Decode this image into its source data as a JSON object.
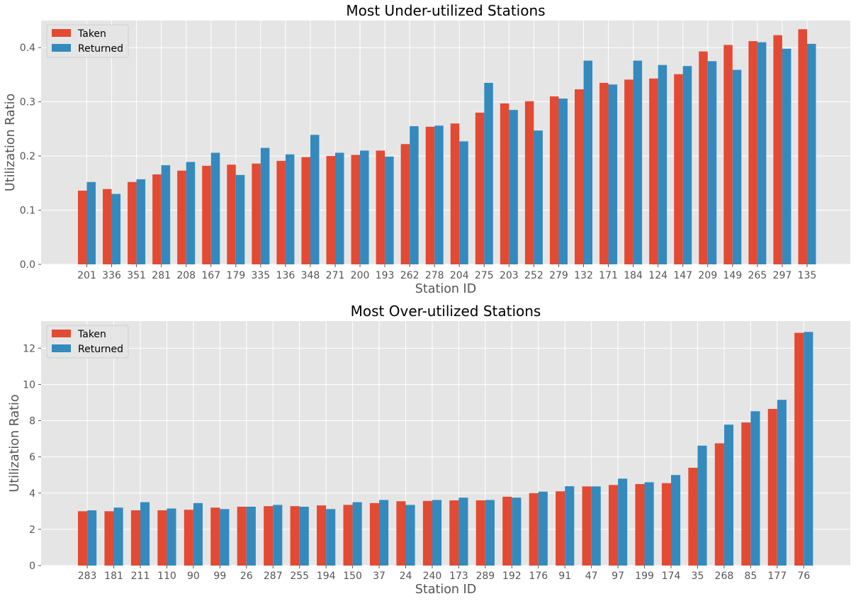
{
  "chart_data": [
    {
      "type": "bar",
      "title": "Most Under-utilized Stations",
      "xlabel": "Station ID",
      "ylabel": "Utilization Ratio",
      "ylim": [
        0,
        0.45
      ],
      "yticks": [
        0.0,
        0.1,
        0.2,
        0.3,
        0.4
      ],
      "ytick_labels": [
        "0.0",
        "0.1",
        "0.2",
        "0.3",
        "0.4"
      ],
      "grid": true,
      "legend": "top-left",
      "categories": [
        "201",
        "336",
        "351",
        "281",
        "208",
        "167",
        "179",
        "335",
        "136",
        "348",
        "271",
        "200",
        "193",
        "262",
        "278",
        "204",
        "275",
        "203",
        "252",
        "279",
        "132",
        "171",
        "184",
        "124",
        "147",
        "209",
        "149",
        "265",
        "297",
        "135"
      ],
      "series": [
        {
          "name": "Taken",
          "color": "#e24a33",
          "values": [
            0.136,
            0.139,
            0.152,
            0.166,
            0.173,
            0.182,
            0.184,
            0.186,
            0.191,
            0.198,
            0.2,
            0.202,
            0.21,
            0.222,
            0.254,
            0.26,
            0.28,
            0.297,
            0.301,
            0.31,
            0.323,
            0.335,
            0.341,
            0.343,
            0.351,
            0.393,
            0.405,
            0.412,
            0.423,
            0.434
          ]
        },
        {
          "name": "Returned",
          "color": "#348abd",
          "values": [
            0.152,
            0.13,
            0.157,
            0.183,
            0.189,
            0.206,
            0.165,
            0.215,
            0.203,
            0.239,
            0.206,
            0.21,
            0.199,
            0.255,
            0.256,
            0.227,
            0.335,
            0.285,
            0.247,
            0.306,
            0.376,
            0.332,
            0.376,
            0.368,
            0.366,
            0.375,
            0.359,
            0.41,
            0.398,
            0.407
          ]
        }
      ]
    },
    {
      "type": "bar",
      "title": "Most Over-utilized Stations",
      "xlabel": "Station ID",
      "ylabel": "Utilization Ratio",
      "ylim": [
        0,
        13.5
      ],
      "yticks": [
        0,
        2,
        4,
        6,
        8,
        10,
        12
      ],
      "ytick_labels": [
        "0",
        "2",
        "4",
        "6",
        "8",
        "10",
        "12"
      ],
      "grid": true,
      "legend": "top-left",
      "categories": [
        "283",
        "181",
        "211",
        "110",
        "90",
        "99",
        "26",
        "287",
        "255",
        "194",
        "150",
        "37",
        "24",
        "240",
        "173",
        "289",
        "192",
        "176",
        "91",
        "47",
        "97",
        "199",
        "174",
        "35",
        "268",
        "85",
        "177",
        "76"
      ],
      "series": [
        {
          "name": "Taken",
          "color": "#e24a33",
          "values": [
            3.0,
            3.0,
            3.05,
            3.05,
            3.08,
            3.2,
            3.25,
            3.28,
            3.28,
            3.32,
            3.35,
            3.45,
            3.55,
            3.57,
            3.6,
            3.6,
            3.8,
            4.0,
            4.1,
            4.37,
            4.45,
            4.5,
            4.55,
            5.4,
            6.75,
            7.9,
            8.65,
            12.85
          ]
        },
        {
          "name": "Returned",
          "color": "#348abd",
          "values": [
            3.05,
            3.2,
            3.5,
            3.15,
            3.45,
            3.12,
            3.25,
            3.35,
            3.25,
            3.12,
            3.5,
            3.62,
            3.35,
            3.62,
            3.75,
            3.62,
            3.75,
            4.08,
            4.38,
            4.37,
            4.8,
            4.6,
            5.0,
            6.62,
            7.78,
            8.52,
            9.15,
            12.9
          ]
        }
      ]
    }
  ]
}
